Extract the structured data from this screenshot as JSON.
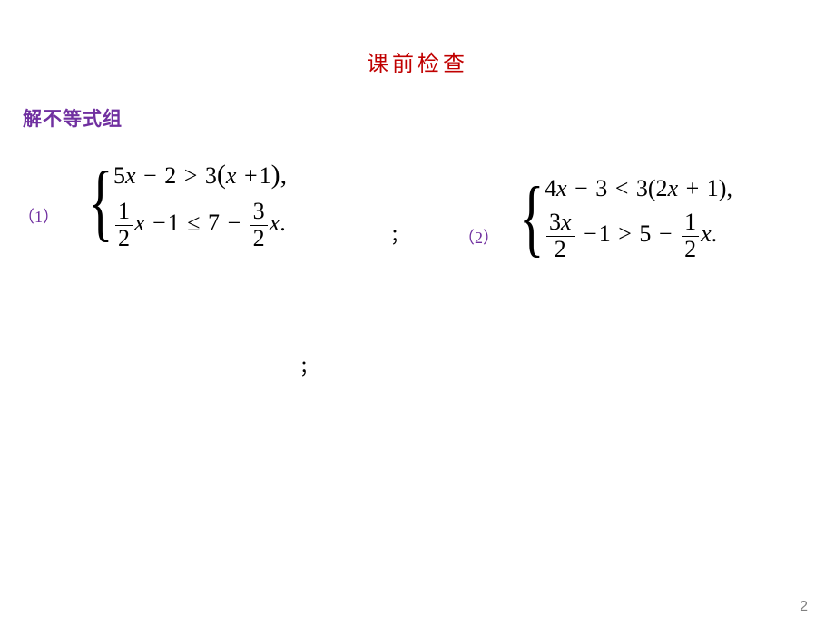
{
  "title": "课前检查",
  "subtitle": "解不等式组",
  "problems": {
    "p1": {
      "label": "（1）",
      "line1_a": "5",
      "line1_b": "x",
      "line1_c": "−",
      "line1_d": "2",
      "line1_e": ">",
      "line1_f": "3",
      "line1_g": "(",
      "line1_h": "x",
      "line1_i": "+",
      "line1_j": "1",
      "line1_k": "),",
      "line2_f1n": "1",
      "line2_f1d": "2",
      "line2_a": "x",
      "line2_b": "−",
      "line2_c": "1",
      "line2_d": "≤",
      "line2_e": "7",
      "line2_f": "−",
      "line2_f2n": "3",
      "line2_f2d": "2",
      "line2_g": "x",
      "line2_h": "."
    },
    "p2": {
      "label": "（2）",
      "line1_a": "4",
      "line1_b": "x",
      "line1_c": "−",
      "line1_d": "3",
      "line1_e": "<",
      "line1_f": "3(2",
      "line1_g": "x",
      "line1_h": "+",
      "line1_i": "1),",
      "line2_f1n_a": "3",
      "line2_f1n_b": "x",
      "line2_f1d": "2",
      "line2_a": "−",
      "line2_b": "1",
      "line2_c": ">",
      "line2_d": "5",
      "line2_e": "−",
      "line2_f2n": "1",
      "line2_f2d": "2",
      "line2_f": "x",
      "line2_g": "."
    }
  },
  "semicolon": "；",
  "pageNumber": "2",
  "colors": {
    "title": "#c00000",
    "subtitle": "#7030a0",
    "label": "#7030a0",
    "text": "#000000",
    "pageNum": "#808080",
    "background": "#ffffff"
  }
}
